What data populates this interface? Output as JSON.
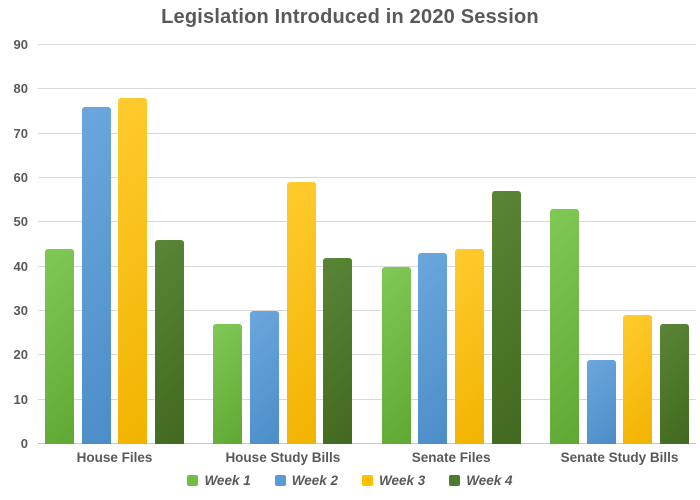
{
  "chart_data": {
    "type": "bar",
    "title": "Legislation Introduced in 2020 Session",
    "categories": [
      "House Files",
      "House Study Bills",
      "Senate Files",
      "Senate Study Bills"
    ],
    "series": [
      {
        "name": "Week 1",
        "color": "#71BE44",
        "color_light": "#80C957",
        "color_dark": "#5FA833",
        "values": [
          44,
          27,
          40,
          53
        ]
      },
      {
        "name": "Week 2",
        "color": "#5B9BD5",
        "color_light": "#6BA7DC",
        "color_dark": "#4C8DC9",
        "values": [
          76,
          30,
          43,
          19
        ]
      },
      {
        "name": "Week 3",
        "color": "#FFC000",
        "color_light": "#FFCB2E",
        "color_dark": "#F2B300",
        "values": [
          78,
          59,
          44,
          29
        ]
      },
      {
        "name": "Week 4",
        "color": "#4E7A2B",
        "color_light": "#5A8536",
        "color_dark": "#41691F",
        "values": [
          46,
          42,
          57,
          27
        ]
      }
    ],
    "ylim": [
      0,
      90
    ],
    "ytick_interval": 10,
    "yticks": [
      0,
      10,
      20,
      30,
      40,
      50,
      60,
      70,
      80,
      90
    ],
    "grid": true,
    "legend_position": "bottom",
    "colors": {
      "text": "#595959",
      "gridline": "#D9D9D9",
      "background": "#FFFFFF"
    }
  }
}
